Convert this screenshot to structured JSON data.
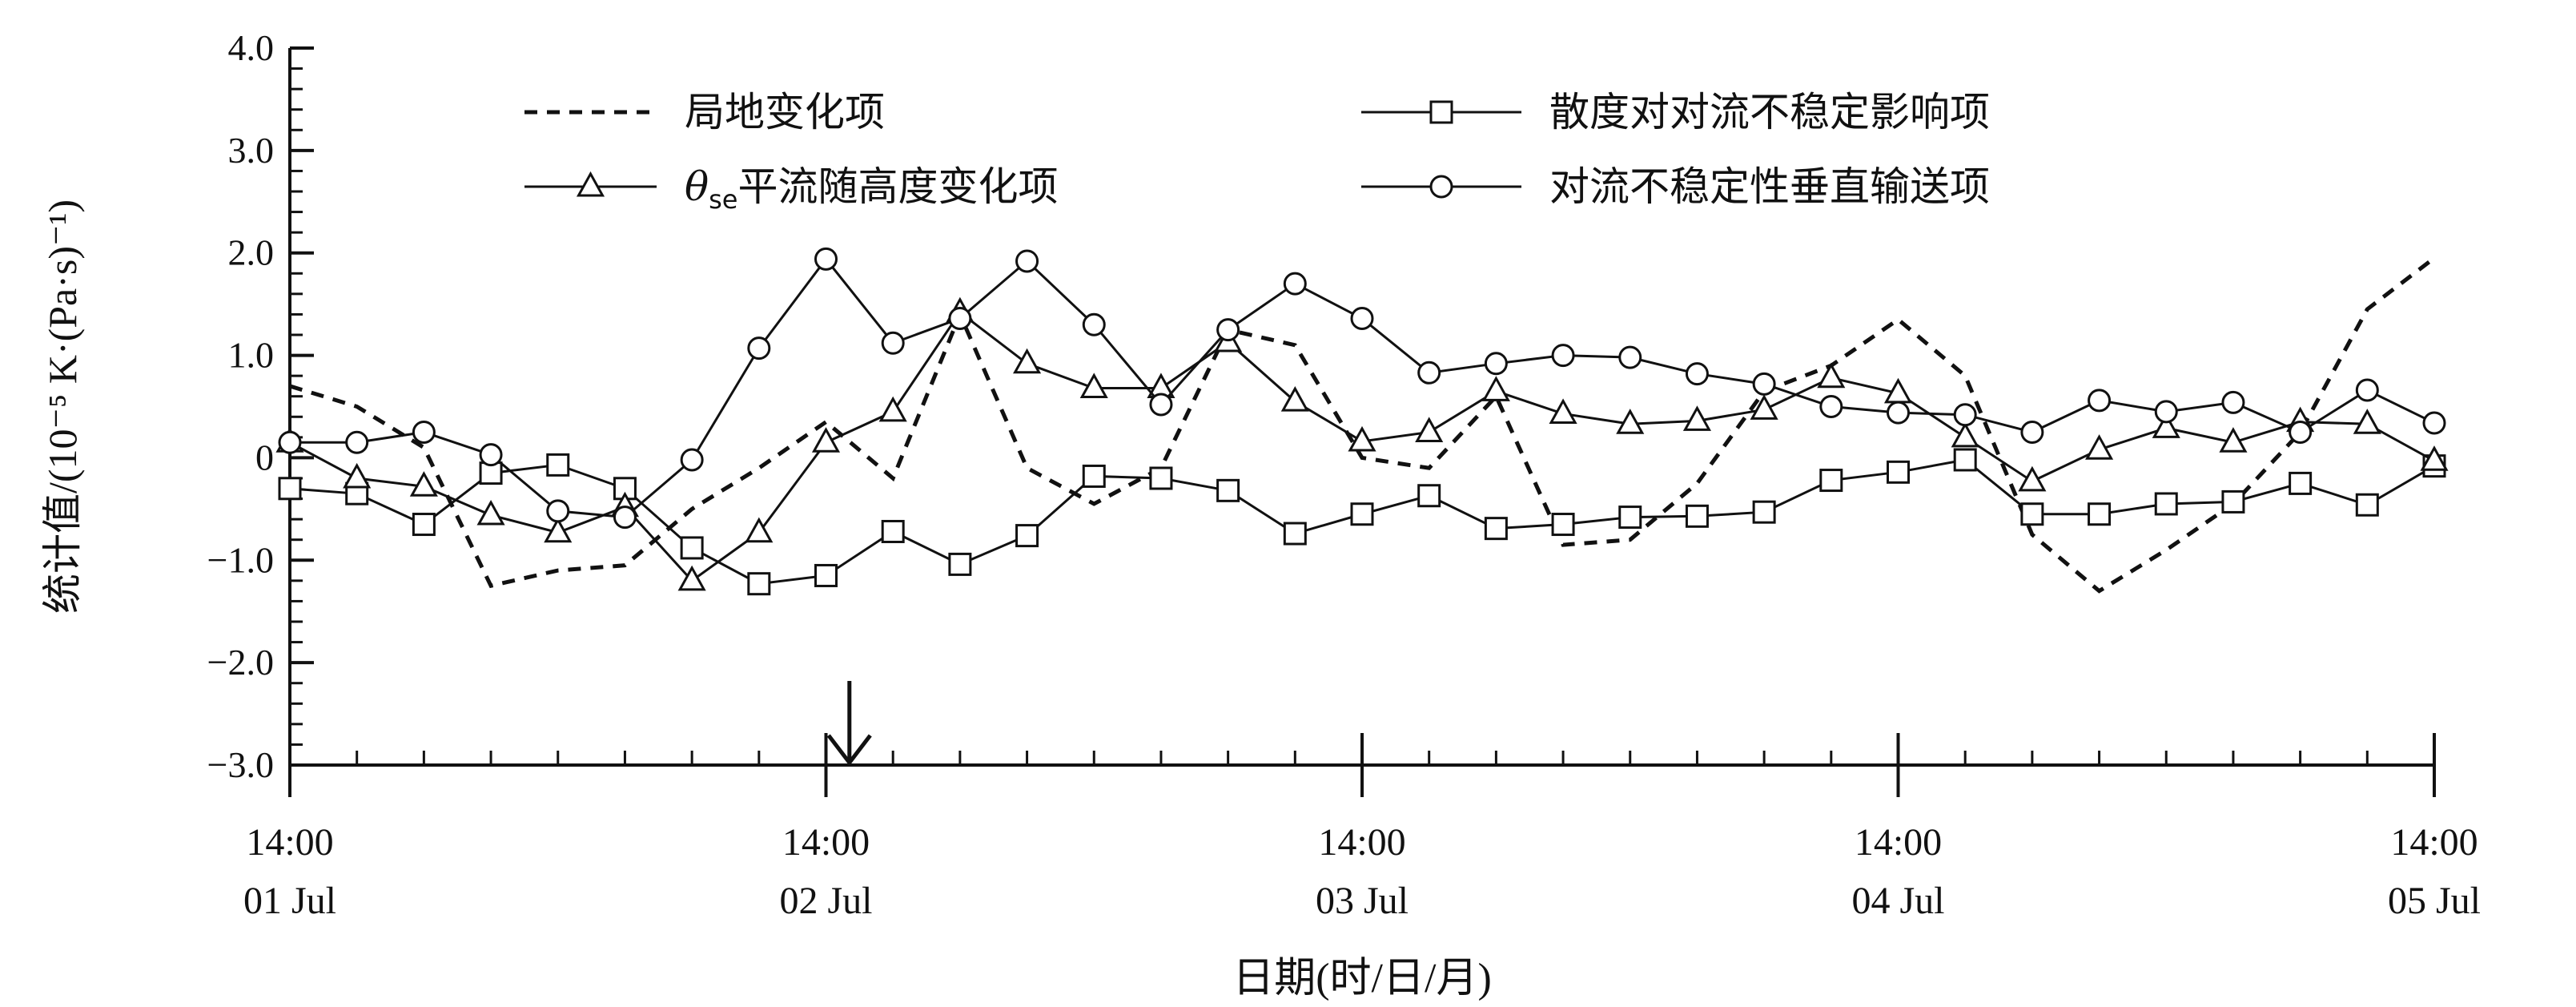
{
  "chart_data": {
    "type": "line",
    "xlabel": "日期(时/日/月)",
    "ylabel": "统计值/(10⁻⁵ K·(Pa·s)⁻¹)",
    "ylim": [
      -3.0,
      4.0
    ],
    "yticks": [
      4.0,
      3.0,
      2.0,
      1.0,
      0,
      -1.0,
      -2.0,
      -3.0
    ],
    "ytick_labels": [
      "4.0",
      "3.0",
      "2.0",
      "1.0",
      "0",
      "−1.0",
      "−2.0",
      "−3.0"
    ],
    "x_index_range": [
      0,
      32
    ],
    "xtick_major": [
      {
        "index": 0,
        "line1": "14:00",
        "line2": "01 Jul"
      },
      {
        "index": 8,
        "line1": "14:00",
        "line2": "02 Jul"
      },
      {
        "index": 16,
        "line1": "14:00",
        "line2": "03 Jul"
      },
      {
        "index": 24,
        "line1": "14:00",
        "line2": "04 Jul"
      },
      {
        "index": 32,
        "line1": "14:00",
        "line2": "05 Jul"
      }
    ],
    "arrow_index": 8.35,
    "legend": [
      {
        "label": "局地变化项",
        "style": "dashed",
        "marker": "none"
      },
      {
        "label": "散度对对流不稳定影响项",
        "style": "solid",
        "marker": "square"
      },
      {
        "label_symbol": "θ",
        "label_sub": "se",
        "label": "平流随高度变化项",
        "style": "solid",
        "marker": "triangle"
      },
      {
        "label": "对流不稳定性垂直输送项",
        "style": "solid",
        "marker": "circle"
      }
    ],
    "series": [
      {
        "marker": "none",
        "dash": true,
        "values": [
          0.7,
          0.5,
          0.1,
          -1.25,
          -1.1,
          -1.05,
          -0.5,
          -0.1,
          0.35,
          -0.2,
          1.4,
          -0.1,
          -0.45,
          -0.1,
          1.25,
          1.1,
          0.0,
          -0.1,
          0.6,
          -0.85,
          -0.8,
          -0.25,
          0.65,
          0.9,
          1.35,
          0.8,
          -0.75,
          -1.3,
          -0.9,
          -0.45,
          0.25,
          1.45,
          1.95
        ]
      },
      {
        "marker": "square",
        "values": [
          -0.3,
          -0.35,
          -0.65,
          -0.15,
          -0.07,
          -0.3,
          -0.88,
          -1.23,
          -1.15,
          -0.72,
          -1.04,
          -0.76,
          -0.18,
          -0.2,
          -0.32,
          -0.74,
          -0.55,
          -0.37,
          -0.69,
          -0.65,
          -0.58,
          -0.57,
          -0.53,
          -0.22,
          -0.14,
          -0.02,
          -0.55,
          -0.55,
          -0.45,
          -0.43,
          -0.25,
          -0.46,
          -0.08
        ]
      },
      {
        "marker": "triangle",
        "values": [
          0.15,
          -0.2,
          -0.28,
          -0.56,
          -0.73,
          -0.48,
          -1.2,
          -0.73,
          0.15,
          0.45,
          1.42,
          0.92,
          0.68,
          0.68,
          1.13,
          0.55,
          0.16,
          0.25,
          0.65,
          0.43,
          0.33,
          0.36,
          0.47,
          0.78,
          0.63,
          0.2,
          -0.23,
          0.08,
          0.29,
          0.15,
          0.35,
          0.33,
          -0.03
        ]
      },
      {
        "marker": "circle",
        "values": [
          0.15,
          0.15,
          0.25,
          0.03,
          -0.52,
          -0.58,
          -0.02,
          1.07,
          1.94,
          1.12,
          1.36,
          1.92,
          1.3,
          0.52,
          1.25,
          1.7,
          1.36,
          0.83,
          0.92,
          1.0,
          0.98,
          0.82,
          0.72,
          0.5,
          0.44,
          0.42,
          0.25,
          0.56,
          0.45,
          0.54,
          0.25,
          0.66,
          0.34
        ]
      }
    ]
  }
}
